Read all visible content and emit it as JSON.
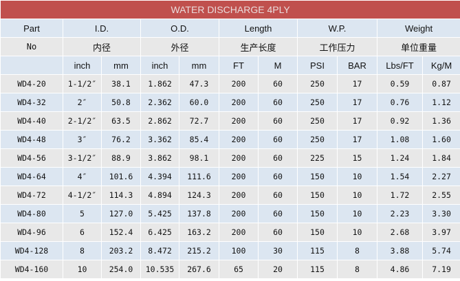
{
  "title": "WATER DISCHARGE 4PLY",
  "header_row1": [
    "Part",
    "I.D.",
    "O.D.",
    "Length",
    "W.P.",
    "Weight"
  ],
  "header_row2": [
    "No",
    "内径",
    "外径",
    "生产长度",
    "工作压力",
    "单位重量"
  ],
  "header_row3": [
    "",
    "inch",
    "mm",
    "inch",
    "mm",
    "FT",
    "M",
    "PSI",
    "BAR",
    "Lbs/FT",
    "Kg/M"
  ],
  "rows": [
    [
      "WD4-20",
      "1-1/2″",
      "38.1",
      "1.862",
      "47.3",
      "200",
      "60",
      "250",
      "17",
      "0.59",
      "0.87"
    ],
    [
      "WD4-32",
      "2″",
      "50.8",
      "2.362",
      "60.0",
      "200",
      "60",
      "250",
      "17",
      "0.76",
      "1.12"
    ],
    [
      "WD4-40",
      "2-1/2″",
      "63.5",
      "2.862",
      "72.7",
      "200",
      "60",
      "250",
      "17",
      "0.92",
      "1.36"
    ],
    [
      "WD4-48",
      "3″",
      "76.2",
      "3.362",
      "85.4",
      "200",
      "60",
      "250",
      "17",
      "1.08",
      "1.60"
    ],
    [
      "WD4-56",
      "3-1/2″",
      "88.9",
      "3.862",
      "98.1",
      "200",
      "60",
      "225",
      "15",
      "1.24",
      "1.84"
    ],
    [
      "WD4-64",
      "4″",
      "101.6",
      "4.394",
      "111.6",
      "200",
      "60",
      "150",
      "10",
      "1.54",
      "2.27"
    ],
    [
      "WD4-72",
      "4-1/2″",
      "114.3",
      "4.894",
      "124.3",
      "200",
      "60",
      "150",
      "10",
      "1.72",
      "2.55"
    ],
    [
      "WD4-80",
      "5",
      "127.0",
      "5.425",
      "137.8",
      "200",
      "60",
      "150",
      "10",
      "2.23",
      "3.30"
    ],
    [
      "WD4-96",
      "6",
      "152.4",
      "6.425",
      "163.2",
      "200",
      "60",
      "150",
      "10",
      "2.68",
      "3.97"
    ],
    [
      "WD4-128",
      "8",
      "203.2",
      "8.472",
      "215.2",
      "100",
      "30",
      "115",
      "8",
      "3.88",
      "5.74"
    ],
    [
      "WD4-160",
      "10",
      "254.0",
      "10.535",
      "267.6",
      "65",
      "20",
      "115",
      "8",
      "4.86",
      "7.19"
    ]
  ],
  "colors": {
    "title_bg": "#c0504d",
    "row_blue": "#dce6f1",
    "row_grey": "#e8e8e8"
  }
}
